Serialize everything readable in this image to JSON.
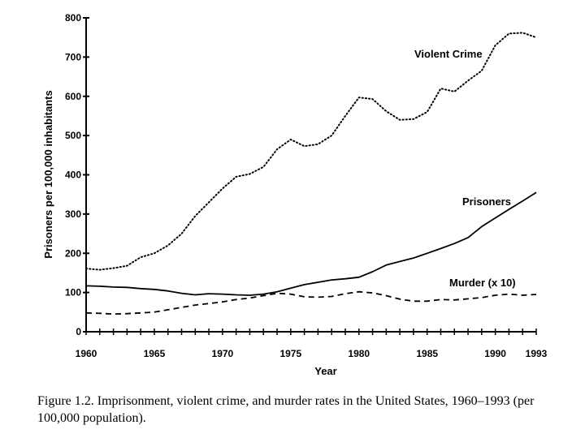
{
  "chart_data": {
    "type": "line",
    "xlabel": "Year",
    "ylabel": "Prisoners per 100,000 inhabitants",
    "xlim": [
      1960,
      1993
    ],
    "ylim": [
      0,
      800
    ],
    "x_tick_labels": [
      "1960",
      "1965",
      "1970",
      "1975",
      "1980",
      "1985",
      "1990",
      "1993"
    ],
    "y_tick_labels": [
      "0",
      "100",
      "200",
      "300",
      "400",
      "500",
      "600",
      "700",
      "800"
    ],
    "x": [
      1960,
      1961,
      1962,
      1963,
      1964,
      1965,
      1966,
      1967,
      1968,
      1969,
      1970,
      1971,
      1972,
      1973,
      1974,
      1975,
      1976,
      1977,
      1978,
      1979,
      1980,
      1981,
      1982,
      1983,
      1984,
      1985,
      1986,
      1987,
      1988,
      1989,
      1990,
      1991,
      1992,
      1993
    ],
    "series": [
      {
        "name": "Violent Crime",
        "style": "dotted",
        "values": [
          161,
          158,
          162,
          168,
          190,
          200,
          220,
          250,
          295,
          330,
          365,
          395,
          402,
          420,
          465,
          490,
          473,
          478,
          500,
          550,
          597,
          593,
          562,
          540,
          542,
          560,
          620,
          612,
          640,
          665,
          730,
          760,
          762,
          750
        ]
      },
      {
        "name": "Prisoners",
        "style": "solid",
        "values": [
          117,
          116,
          114,
          113,
          110,
          108,
          104,
          98,
          94,
          97,
          96,
          94,
          93,
          96,
          102,
          111,
          120,
          126,
          132,
          135,
          139,
          153,
          170,
          179,
          188,
          200,
          212,
          225,
          240,
          268,
          290,
          312,
          333,
          355
        ]
      },
      {
        "name": "Murder (x 10)",
        "style": "dashed",
        "values": [
          48,
          47,
          45,
          46,
          48,
          50,
          56,
          62,
          68,
          72,
          76,
          82,
          86,
          92,
          98,
          96,
          89,
          88,
          90,
          97,
          102,
          99,
          92,
          83,
          78,
          78,
          82,
          81,
          84,
          87,
          93,
          96,
          93,
          95
        ]
      }
    ]
  },
  "caption": "Figure 1.2. Imprisonment, violent crime, and murder rates in the United States, 1960–1993 (per 100,000 population)."
}
